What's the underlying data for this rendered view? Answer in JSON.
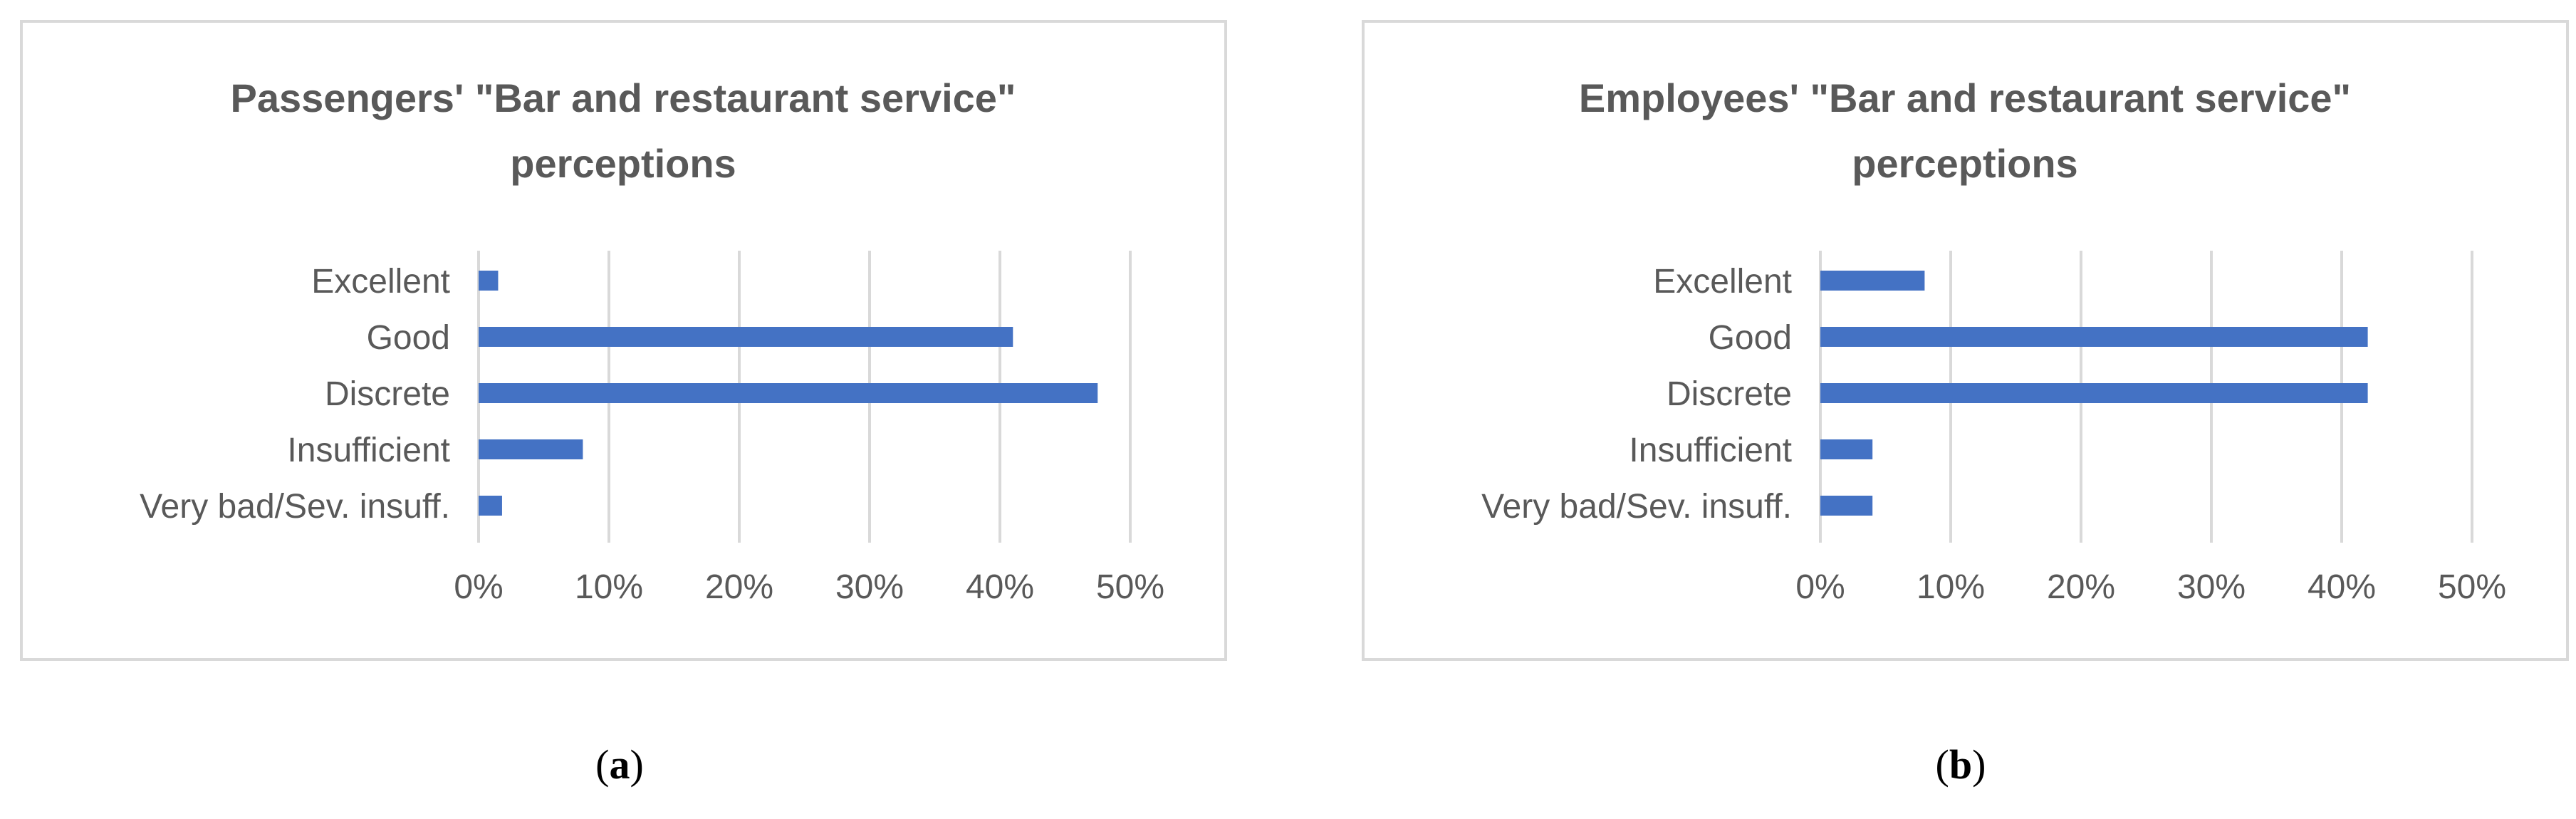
{
  "chart_data": [
    {
      "type": "bar",
      "orientation": "horizontal",
      "title_lines": [
        "Passengers' \"Bar and restaurant service\"",
        "perceptions"
      ],
      "categories": [
        "Excellent",
        "Good",
        "Discrete",
        "Insufficient",
        "Very bad/Sev. insuff."
      ],
      "values": [
        1.5,
        41,
        47.5,
        8,
        1.8
      ],
      "xlim": [
        0,
        50
      ],
      "xticks": [
        "0%",
        "10%",
        "20%",
        "30%",
        "40%",
        "50%"
      ],
      "grid": true,
      "bar_color": "#4472c4"
    },
    {
      "type": "bar",
      "orientation": "horizontal",
      "title_lines": [
        "Employees' \"Bar and restaurant service\"",
        "perceptions"
      ],
      "categories": [
        "Excellent",
        "Good",
        "Discrete",
        "Insufficient",
        "Very bad/Sev. insuff."
      ],
      "values": [
        8,
        42,
        42,
        4,
        4
      ],
      "xlim": [
        0,
        50
      ],
      "xticks": [
        "0%",
        "10%",
        "20%",
        "30%",
        "40%",
        "50%"
      ],
      "grid": true,
      "bar_color": "#4472c4"
    }
  ],
  "captions": {
    "a": {
      "open": "(",
      "letter": "a",
      "close": ")"
    },
    "b": {
      "open": "(",
      "letter": "b",
      "close": ")"
    }
  }
}
